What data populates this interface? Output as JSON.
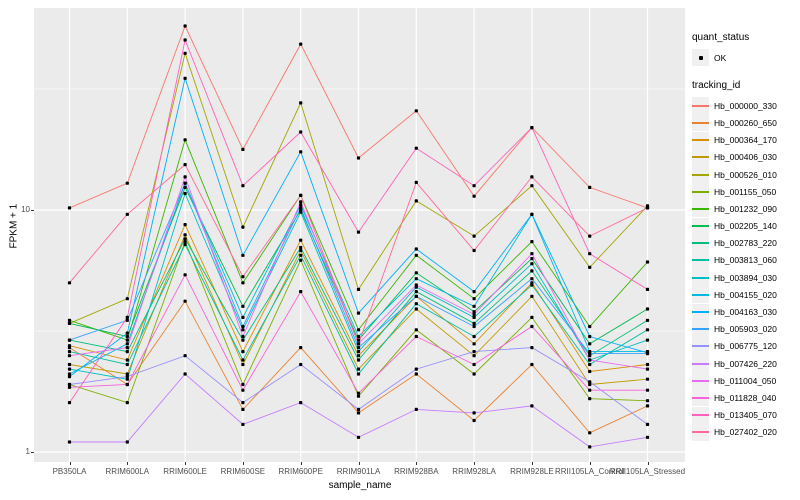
{
  "figure": {
    "background": "#ffffff",
    "panel_background": "#EBEBEB",
    "gridline_color": "#FFFFFF",
    "tick_text_color": "#4d4d4d",
    "point_color": "#000000"
  },
  "legend": {
    "quant_status": {
      "title": "quant_status",
      "items": [
        {
          "label": "OK",
          "marker": "black-point"
        }
      ]
    },
    "tracking_id": {
      "title": "tracking_id"
    }
  },
  "chart_data": {
    "type": "line",
    "title": "",
    "xlabel": "sample_name",
    "ylabel": "FPKM + 1",
    "yscale": "log10",
    "ylim": [
      0.93,
      68
    ],
    "yticks": [
      {
        "label": "10",
        "value": 10
      },
      {
        "label": "1",
        "value": 1
      }
    ],
    "minor_gridline_values": [
      31.62,
      3.162
    ],
    "legend_position": "right",
    "marker": "small black point (quant_status = OK)",
    "categories": [
      "PB350LA",
      "RRIM600LA",
      "RRIM600LE",
      "RRIM600SE",
      "RRIM600PE",
      "RRIM901LA",
      "RRIM928BA",
      "RRIM928LA",
      "RRIM928LE",
      "RRII105LA_Control",
      "RRII105LA_Stressed"
    ],
    "values_unit": "FPKM + 1",
    "series": [
      {
        "name": "Hb_000000_330",
        "color": "#F8766D",
        "values": [
          10.2,
          12.9,
          57.6,
          17.8,
          48.5,
          16.4,
          25.7,
          11.4,
          21.9,
          12.4,
          10.2
        ]
      },
      {
        "name": "Hb_000260_650",
        "color": "#EA8331",
        "values": [
          2.7,
          1.9,
          4.2,
          1.5,
          2.7,
          1.45,
          2.1,
          1.35,
          2.3,
          1.2,
          1.55
        ]
      },
      {
        "name": "Hb_000364_170",
        "color": "#D89000",
        "values": [
          2.75,
          2.4,
          8.7,
          2.6,
          7.5,
          2.5,
          4.4,
          2.8,
          5.0,
          2.15,
          2.3
        ]
      },
      {
        "name": "Hb_000406_030",
        "color": "#C09B00",
        "values": [
          2.3,
          2.1,
          7.9,
          2.3,
          6.8,
          2.2,
          3.9,
          2.5,
          4.4,
          1.9,
          2.0
        ]
      },
      {
        "name": "Hb_000526_010",
        "color": "#A3A500",
        "values": [
          3.4,
          4.3,
          44.4,
          8.5,
          27.7,
          4.7,
          10.9,
          7.8,
          12.6,
          5.8,
          10.4
        ]
      },
      {
        "name": "Hb_001155_050",
        "color": "#7CAE00",
        "values": [
          1.9,
          1.6,
          7.4,
          1.9,
          6.2,
          1.7,
          3.2,
          2.1,
          3.6,
          1.66,
          1.63
        ]
      },
      {
        "name": "Hb_001232_090",
        "color": "#39B600",
        "values": [
          3.5,
          2.9,
          19.5,
          5.0,
          11.5,
          3.2,
          6.5,
          4.3,
          7.4,
          3.3,
          6.1
        ]
      },
      {
        "name": "Hb_002205_140",
        "color": "#00BB4E",
        "values": [
          3.4,
          3.0,
          12.4,
          4.0,
          10.0,
          2.9,
          5.5,
          3.8,
          6.3,
          2.8,
          3.9
        ]
      },
      {
        "name": "Hb_002783_220",
        "color": "#00BF7D",
        "values": [
          2.9,
          2.6,
          7.6,
          2.9,
          7.0,
          2.4,
          4.6,
          3.4,
          5.6,
          2.5,
          3.5
        ]
      },
      {
        "name": "Hb_003813_060",
        "color": "#00C1A3",
        "values": [
          2.6,
          2.3,
          7.2,
          2.4,
          6.5,
          2.1,
          4.1,
          3.0,
          4.9,
          2.3,
          3.2
        ]
      },
      {
        "name": "Hb_003894_030",
        "color": "#00BFC4",
        "values": [
          2.2,
          2.0,
          11.7,
          3.2,
          9.8,
          2.6,
          4.8,
          3.6,
          6.0,
          2.4,
          2.9
        ]
      },
      {
        "name": "Hb_004155_020",
        "color": "#00BAE0",
        "values": [
          2.1,
          2.8,
          12.9,
          3.6,
          10.5,
          3.0,
          5.2,
          4.0,
          9.6,
          2.6,
          2.6
        ]
      },
      {
        "name": "Hb_004163_030",
        "color": "#00B0F6",
        "values": [
          2.05,
          3.1,
          35.0,
          6.5,
          17.4,
          3.75,
          6.9,
          4.6,
          9.6,
          3.0,
          2.57
        ]
      },
      {
        "name": "Hb_005903_020",
        "color": "#35A2FF",
        "values": [
          2.9,
          3.5,
          12.9,
          3.3,
          10.2,
          2.7,
          4.4,
          3.3,
          5.2,
          2.55,
          2.55
        ]
      },
      {
        "name": "Hb_006775_120",
        "color": "#9590FF",
        "values": [
          1.9,
          2.05,
          2.5,
          1.6,
          2.3,
          1.5,
          2.2,
          2.6,
          2.7,
          1.95,
          1.3
        ]
      },
      {
        "name": "Hb_007426_220",
        "color": "#C77CFF",
        "values": [
          1.1,
          1.1,
          2.1,
          1.3,
          1.6,
          1.15,
          1.5,
          1.45,
          1.55,
          1.05,
          1.15
        ]
      },
      {
        "name": "Hb_011004_050",
        "color": "#E76BF3",
        "values": [
          2.5,
          2.7,
          13.7,
          3.0,
          10.8,
          2.8,
          4.9,
          3.7,
          6.6,
          2.4,
          2.2
        ]
      },
      {
        "name": "Hb_011828_040",
        "color": "#FA62DB",
        "values": [
          1.85,
          1.9,
          5.4,
          1.8,
          4.6,
          1.75,
          3.0,
          2.3,
          3.3,
          1.8,
          1.8
        ]
      },
      {
        "name": "Hb_013405_070",
        "color": "#FF62BC",
        "values": [
          1.6,
          3.6,
          50.4,
          12.6,
          21.0,
          8.1,
          18.0,
          12.6,
          21.9,
          6.6,
          4.7
        ]
      },
      {
        "name": "Hb_027402_020",
        "color": "#FF6A98",
        "values": [
          5.0,
          9.6,
          15.4,
          5.3,
          11.5,
          2.8,
          13.0,
          6.8,
          13.7,
          7.8,
          10.2
        ]
      }
    ]
  }
}
